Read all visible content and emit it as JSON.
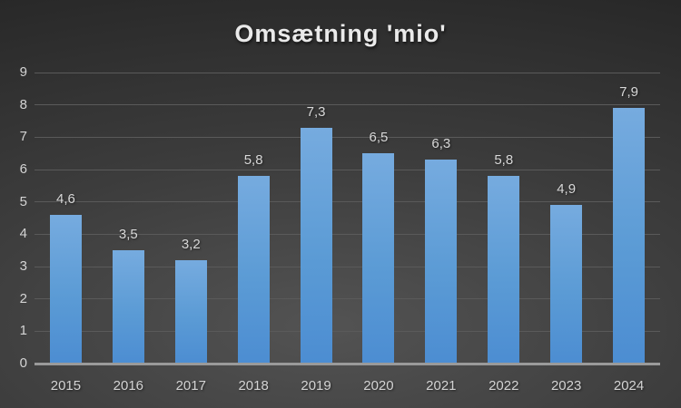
{
  "chart_data": {
    "type": "bar",
    "title": "Omsætning 'mio'",
    "categories": [
      "2015",
      "2016",
      "2017",
      "2018",
      "2019",
      "2020",
      "2021",
      "2022",
      "2023",
      "2024"
    ],
    "values": [
      4.6,
      3.5,
      3.2,
      5.8,
      7.3,
      6.5,
      6.3,
      5.8,
      4.9,
      7.9
    ],
    "value_labels": [
      "4,6",
      "3,5",
      "3,2",
      "5,8",
      "7,3",
      "6,5",
      "6,3",
      "5,8",
      "4,9",
      "7,9"
    ],
    "xlabel": "",
    "ylabel": "",
    "ylim": [
      0,
      9
    ],
    "ytick_step": 1,
    "ytick_labels": [
      "0",
      "1",
      "2",
      "3",
      "4",
      "5",
      "6",
      "7",
      "8",
      "9"
    ],
    "grid": "horizontal",
    "legend": "none",
    "colors": {
      "bar_top": "#76abdf",
      "bar_bottom": "#4c8dd2",
      "bar_base": "#5b9bd5",
      "background_dark": "#252525",
      "background_light": "#535353",
      "gridline": "#5a5a5a",
      "axis_line": "#9a9a9a",
      "tick_label": "#d4d4d4",
      "value_label": "#d8d8d8",
      "title": "#eaeaea"
    }
  }
}
